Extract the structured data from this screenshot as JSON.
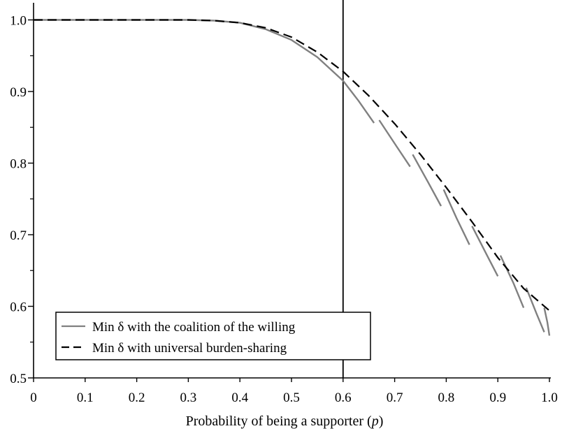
{
  "chart_data": {
    "type": "line",
    "xlabel_main": "Probability of being a supporter (",
    "xlabel_var": "p",
    "xlabel_close": ")",
    "ylabel": "",
    "xlim": [
      0,
      1.0
    ],
    "ylim": [
      0.5,
      1.02
    ],
    "x_ticks": [
      "0",
      "0.1",
      "0.2",
      "0.3",
      "0.4",
      "0.5",
      "0.6",
      "0.7",
      "0.8",
      "0.9",
      "1.0"
    ],
    "y_ticks": [
      "0.5",
      "0.6",
      "0.7",
      "0.8",
      "0.9",
      "1.0"
    ],
    "reference_line_x": 0.6,
    "legend": {
      "placement": "lower-left",
      "entries": [
        "Min δ with the coalition of the willing",
        "Min δ with universal burden-sharing"
      ]
    },
    "series": [
      {
        "name": "Min δ with the coalition of the willing",
        "style": "solid",
        "color": "#808080",
        "segments": [
          [
            [
              0,
              1.0
            ],
            [
              0.1,
              1.0
            ],
            [
              0.2,
              1.0
            ],
            [
              0.3,
              1.0
            ],
            [
              0.35,
              0.999
            ],
            [
              0.4,
              0.996
            ],
            [
              0.45,
              0.987
            ],
            [
              0.5,
              0.972
            ],
            [
              0.55,
              0.948
            ],
            [
              0.6,
              0.915
            ],
            [
              0.63,
              0.887
            ],
            [
              0.66,
              0.856
            ]
          ],
          [
            [
              0.67,
              0.86
            ],
            [
              0.705,
              0.822
            ],
            [
              0.73,
              0.795
            ]
          ],
          [
            [
              0.735,
              0.812
            ],
            [
              0.765,
              0.773
            ],
            [
              0.79,
              0.74
            ]
          ],
          [
            [
              0.795,
              0.763
            ],
            [
              0.82,
              0.723
            ],
            [
              0.845,
              0.686
            ]
          ],
          [
            [
              0.85,
              0.712
            ],
            [
              0.88,
              0.67
            ],
            [
              0.9,
              0.642
            ]
          ],
          [
            [
              0.905,
              0.671
            ],
            [
              0.93,
              0.633
            ],
            [
              0.95,
              0.598
            ]
          ],
          [
            [
              0.955,
              0.626
            ],
            [
              0.975,
              0.59
            ],
            [
              0.99,
              0.564
            ]
          ],
          [
            [
              0.99,
              0.598
            ],
            [
              0.996,
              0.578
            ],
            [
              1.0,
              0.559
            ]
          ]
        ]
      },
      {
        "name": "Min δ with universal burden-sharing",
        "style": "dashed",
        "color": "#000000",
        "points": [
          [
            0,
            1.0
          ],
          [
            0.1,
            1.0
          ],
          [
            0.2,
            1.0
          ],
          [
            0.3,
            1.0
          ],
          [
            0.35,
            0.999
          ],
          [
            0.4,
            0.996
          ],
          [
            0.45,
            0.989
          ],
          [
            0.5,
            0.976
          ],
          [
            0.55,
            0.955
          ],
          [
            0.6,
            0.928
          ],
          [
            0.65,
            0.894
          ],
          [
            0.7,
            0.855
          ],
          [
            0.75,
            0.812
          ],
          [
            0.8,
            0.766
          ],
          [
            0.85,
            0.718
          ],
          [
            0.9,
            0.668
          ],
          [
            0.95,
            0.625
          ],
          [
            1.0,
            0.594
          ]
        ]
      }
    ],
    "grid": false
  }
}
